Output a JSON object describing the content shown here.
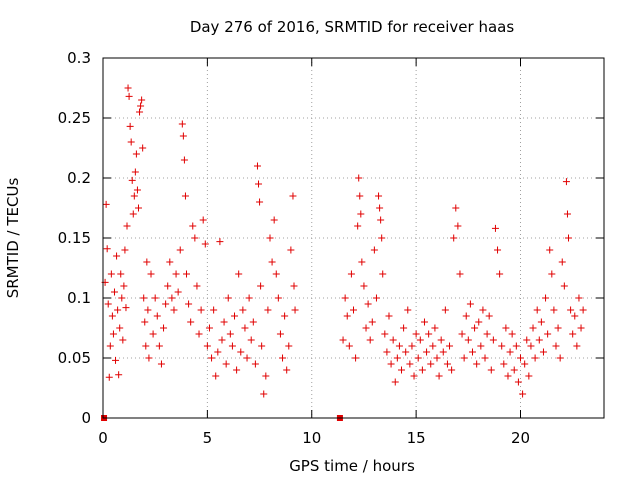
{
  "chart_data": {
    "type": "scatter",
    "title": "Day 276 of 2016, SRMTID for receiver haas",
    "xlabel": "GPS time / hours",
    "ylabel": "SRMTID / TECUs",
    "xlim": [
      0,
      24
    ],
    "ylim": [
      0,
      0.3
    ],
    "xticks": [
      0,
      5,
      10,
      15,
      20
    ],
    "xtick_labels": [
      "0",
      "5",
      "10",
      "15",
      "20"
    ],
    "yticks": [
      0,
      0.05,
      0.1,
      0.15,
      0.2,
      0.25,
      0.3
    ],
    "ytick_labels": [
      "0",
      "0.05",
      "0.1",
      "0.15",
      "0.2",
      "0.25",
      "0.3"
    ],
    "grid": true,
    "marker": "+",
    "series_color": "#e00000",
    "baseline_markers_x": [
      0.05,
      11.35
    ],
    "series": [
      {
        "name": "SRMTID",
        "points": [
          [
            0.1,
            0.113
          ],
          [
            0.15,
            0.178
          ],
          [
            0.2,
            0.141
          ],
          [
            0.25,
            0.095
          ],
          [
            0.3,
            0.034
          ],
          [
            0.35,
            0.06
          ],
          [
            0.4,
            0.12
          ],
          [
            0.45,
            0.085
          ],
          [
            0.5,
            0.07
          ],
          [
            0.55,
            0.105
          ],
          [
            0.6,
            0.048
          ],
          [
            0.65,
            0.135
          ],
          [
            0.7,
            0.09
          ],
          [
            0.75,
            0.036
          ],
          [
            0.8,
            0.075
          ],
          [
            0.85,
            0.12
          ],
          [
            0.9,
            0.1
          ],
          [
            0.95,
            0.065
          ],
          [
            1.0,
            0.11
          ],
          [
            1.05,
            0.14
          ],
          [
            1.1,
            0.092
          ],
          [
            1.15,
            0.16
          ],
          [
            1.2,
            0.275
          ],
          [
            1.25,
            0.268
          ],
          [
            1.3,
            0.243
          ],
          [
            1.35,
            0.23
          ],
          [
            1.4,
            0.198
          ],
          [
            1.45,
            0.17
          ],
          [
            1.5,
            0.185
          ],
          [
            1.55,
            0.205
          ],
          [
            1.6,
            0.22
          ],
          [
            1.65,
            0.19
          ],
          [
            1.7,
            0.175
          ],
          [
            1.75,
            0.255
          ],
          [
            1.8,
            0.26
          ],
          [
            1.85,
            0.265
          ],
          [
            1.9,
            0.225
          ],
          [
            1.95,
            0.1
          ],
          [
            2.0,
            0.08
          ],
          [
            2.05,
            0.06
          ],
          [
            2.1,
            0.13
          ],
          [
            2.15,
            0.09
          ],
          [
            2.2,
            0.05
          ],
          [
            2.3,
            0.12
          ],
          [
            2.4,
            0.07
          ],
          [
            2.5,
            0.1
          ],
          [
            2.6,
            0.085
          ],
          [
            2.7,
            0.06
          ],
          [
            2.8,
            0.045
          ],
          [
            2.9,
            0.075
          ],
          [
            3.0,
            0.095
          ],
          [
            3.1,
            0.11
          ],
          [
            3.2,
            0.13
          ],
          [
            3.3,
            0.1
          ],
          [
            3.4,
            0.09
          ],
          [
            3.5,
            0.12
          ],
          [
            3.6,
            0.105
          ],
          [
            3.7,
            0.14
          ],
          [
            3.8,
            0.245
          ],
          [
            3.85,
            0.235
          ],
          [
            3.9,
            0.215
          ],
          [
            3.95,
            0.185
          ],
          [
            4.0,
            0.12
          ],
          [
            4.1,
            0.095
          ],
          [
            4.2,
            0.08
          ],
          [
            4.3,
            0.16
          ],
          [
            4.4,
            0.15
          ],
          [
            4.5,
            0.11
          ],
          [
            4.6,
            0.07
          ],
          [
            4.7,
            0.09
          ],
          [
            4.8,
            0.165
          ],
          [
            4.9,
            0.145
          ],
          [
            5.0,
            0.06
          ],
          [
            5.1,
            0.075
          ],
          [
            5.2,
            0.05
          ],
          [
            5.3,
            0.09
          ],
          [
            5.4,
            0.035
          ],
          [
            5.5,
            0.055
          ],
          [
            5.6,
            0.147
          ],
          [
            5.7,
            0.065
          ],
          [
            5.8,
            0.08
          ],
          [
            5.9,
            0.045
          ],
          [
            6.0,
            0.1
          ],
          [
            6.1,
            0.07
          ],
          [
            6.2,
            0.06
          ],
          [
            6.3,
            0.085
          ],
          [
            6.4,
            0.04
          ],
          [
            6.5,
            0.12
          ],
          [
            6.6,
            0.055
          ],
          [
            6.7,
            0.09
          ],
          [
            6.8,
            0.075
          ],
          [
            6.9,
            0.05
          ],
          [
            7.0,
            0.1
          ],
          [
            7.1,
            0.065
          ],
          [
            7.2,
            0.08
          ],
          [
            7.3,
            0.045
          ],
          [
            7.4,
            0.21
          ],
          [
            7.45,
            0.195
          ],
          [
            7.5,
            0.18
          ],
          [
            7.55,
            0.11
          ],
          [
            7.6,
            0.06
          ],
          [
            7.7,
            0.02
          ],
          [
            7.8,
            0.035
          ],
          [
            7.9,
            0.09
          ],
          [
            8.0,
            0.15
          ],
          [
            8.1,
            0.13
          ],
          [
            8.2,
            0.165
          ],
          [
            8.3,
            0.12
          ],
          [
            8.4,
            0.1
          ],
          [
            8.5,
            0.07
          ],
          [
            8.6,
            0.05
          ],
          [
            8.7,
            0.085
          ],
          [
            8.8,
            0.04
          ],
          [
            8.9,
            0.06
          ],
          [
            9.0,
            0.14
          ],
          [
            9.1,
            0.185
          ],
          [
            9.15,
            0.11
          ],
          [
            9.2,
            0.09
          ],
          [
            11.5,
            0.065
          ],
          [
            11.6,
            0.1
          ],
          [
            11.7,
            0.085
          ],
          [
            11.8,
            0.06
          ],
          [
            11.9,
            0.12
          ],
          [
            12.0,
            0.09
          ],
          [
            12.1,
            0.05
          ],
          [
            12.2,
            0.16
          ],
          [
            12.25,
            0.2
          ],
          [
            12.3,
            0.185
          ],
          [
            12.35,
            0.17
          ],
          [
            12.4,
            0.13
          ],
          [
            12.5,
            0.11
          ],
          [
            12.6,
            0.075
          ],
          [
            12.7,
            0.095
          ],
          [
            12.8,
            0.065
          ],
          [
            12.9,
            0.08
          ],
          [
            13.0,
            0.14
          ],
          [
            13.1,
            0.1
          ],
          [
            13.2,
            0.185
          ],
          [
            13.25,
            0.175
          ],
          [
            13.3,
            0.165
          ],
          [
            13.35,
            0.15
          ],
          [
            13.4,
            0.12
          ],
          [
            13.5,
            0.07
          ],
          [
            13.6,
            0.055
          ],
          [
            13.7,
            0.085
          ],
          [
            13.8,
            0.045
          ],
          [
            13.9,
            0.065
          ],
          [
            14.0,
            0.03
          ],
          [
            14.1,
            0.05
          ],
          [
            14.2,
            0.06
          ],
          [
            14.3,
            0.04
          ],
          [
            14.4,
            0.075
          ],
          [
            14.5,
            0.055
          ],
          [
            14.6,
            0.09
          ],
          [
            14.7,
            0.045
          ],
          [
            14.8,
            0.06
          ],
          [
            14.9,
            0.035
          ],
          [
            15.0,
            0.07
          ],
          [
            15.1,
            0.05
          ],
          [
            15.2,
            0.065
          ],
          [
            15.3,
            0.04
          ],
          [
            15.4,
            0.08
          ],
          [
            15.5,
            0.055
          ],
          [
            15.6,
            0.07
          ],
          [
            15.7,
            0.045
          ],
          [
            15.8,
            0.06
          ],
          [
            15.9,
            0.075
          ],
          [
            16.0,
            0.05
          ],
          [
            16.1,
            0.035
          ],
          [
            16.2,
            0.065
          ],
          [
            16.3,
            0.055
          ],
          [
            16.4,
            0.09
          ],
          [
            16.5,
            0.045
          ],
          [
            16.6,
            0.06
          ],
          [
            16.7,
            0.04
          ],
          [
            16.8,
            0.15
          ],
          [
            16.9,
            0.175
          ],
          [
            17.0,
            0.16
          ],
          [
            17.1,
            0.12
          ],
          [
            17.2,
            0.07
          ],
          [
            17.3,
            0.05
          ],
          [
            17.4,
            0.085
          ],
          [
            17.5,
            0.065
          ],
          [
            17.6,
            0.095
          ],
          [
            17.7,
            0.055
          ],
          [
            17.8,
            0.075
          ],
          [
            17.9,
            0.045
          ],
          [
            18.0,
            0.08
          ],
          [
            18.1,
            0.06
          ],
          [
            18.2,
            0.09
          ],
          [
            18.3,
            0.05
          ],
          [
            18.4,
            0.07
          ],
          [
            18.5,
            0.085
          ],
          [
            18.6,
            0.04
          ],
          [
            18.7,
            0.065
          ],
          [
            18.8,
            0.158
          ],
          [
            18.9,
            0.14
          ],
          [
            19.0,
            0.12
          ],
          [
            19.1,
            0.06
          ],
          [
            19.2,
            0.045
          ],
          [
            19.3,
            0.075
          ],
          [
            19.4,
            0.035
          ],
          [
            19.5,
            0.055
          ],
          [
            19.6,
            0.07
          ],
          [
            19.7,
            0.04
          ],
          [
            19.8,
            0.06
          ],
          [
            19.9,
            0.03
          ],
          [
            20.0,
            0.05
          ],
          [
            20.1,
            0.02
          ],
          [
            20.2,
            0.045
          ],
          [
            20.3,
            0.065
          ],
          [
            20.4,
            0.035
          ],
          [
            20.5,
            0.06
          ],
          [
            20.6,
            0.075
          ],
          [
            20.7,
            0.05
          ],
          [
            20.8,
            0.09
          ],
          [
            20.9,
            0.065
          ],
          [
            21.0,
            0.08
          ],
          [
            21.1,
            0.055
          ],
          [
            21.2,
            0.1
          ],
          [
            21.3,
            0.07
          ],
          [
            21.4,
            0.14
          ],
          [
            21.5,
            0.12
          ],
          [
            21.6,
            0.09
          ],
          [
            21.7,
            0.06
          ],
          [
            21.8,
            0.075
          ],
          [
            21.9,
            0.05
          ],
          [
            22.0,
            0.13
          ],
          [
            22.1,
            0.11
          ],
          [
            22.2,
            0.197
          ],
          [
            22.25,
            0.17
          ],
          [
            22.3,
            0.15
          ],
          [
            22.4,
            0.09
          ],
          [
            22.5,
            0.07
          ],
          [
            22.6,
            0.085
          ],
          [
            22.7,
            0.06
          ],
          [
            22.8,
            0.1
          ],
          [
            22.9,
            0.075
          ],
          [
            23.0,
            0.09
          ]
        ]
      }
    ]
  }
}
